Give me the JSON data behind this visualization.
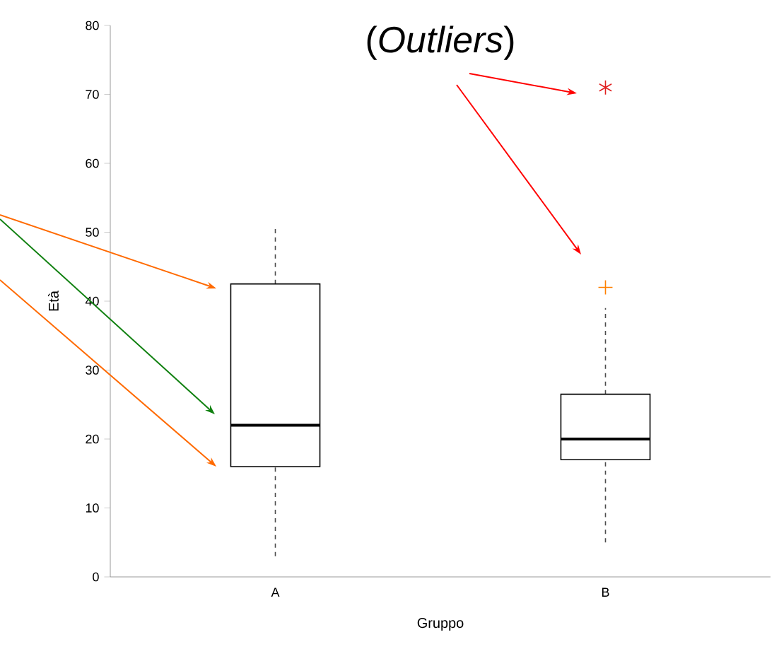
{
  "chart_data": {
    "type": "box",
    "title": "(*Outliers*)",
    "xlabel": "Gruppo",
    "ylabel": "Età",
    "categories": [
      "A",
      "B"
    ],
    "boxes": [
      {
        "low": 3,
        "q1": 16,
        "median": 22,
        "q3": 42.5,
        "high": 51
      },
      {
        "low": 5,
        "q1": 17,
        "median": 20,
        "q3": 26.5,
        "high": 39
      }
    ],
    "series": [
      {
        "type": "scatter",
        "x": [
          "B"
        ],
        "values": [
          42
        ],
        "color": "#ff8000",
        "marker": "cross"
      },
      {
        "type": "scatter",
        "x": [
          "B"
        ],
        "values": [
          71
        ],
        "color": "#e02020"
      }
    ],
    "ylim": [
      0,
      80
    ],
    "yticks": [
      0,
      10,
      20,
      30,
      40,
      50,
      60,
      70,
      80
    ]
  }
}
